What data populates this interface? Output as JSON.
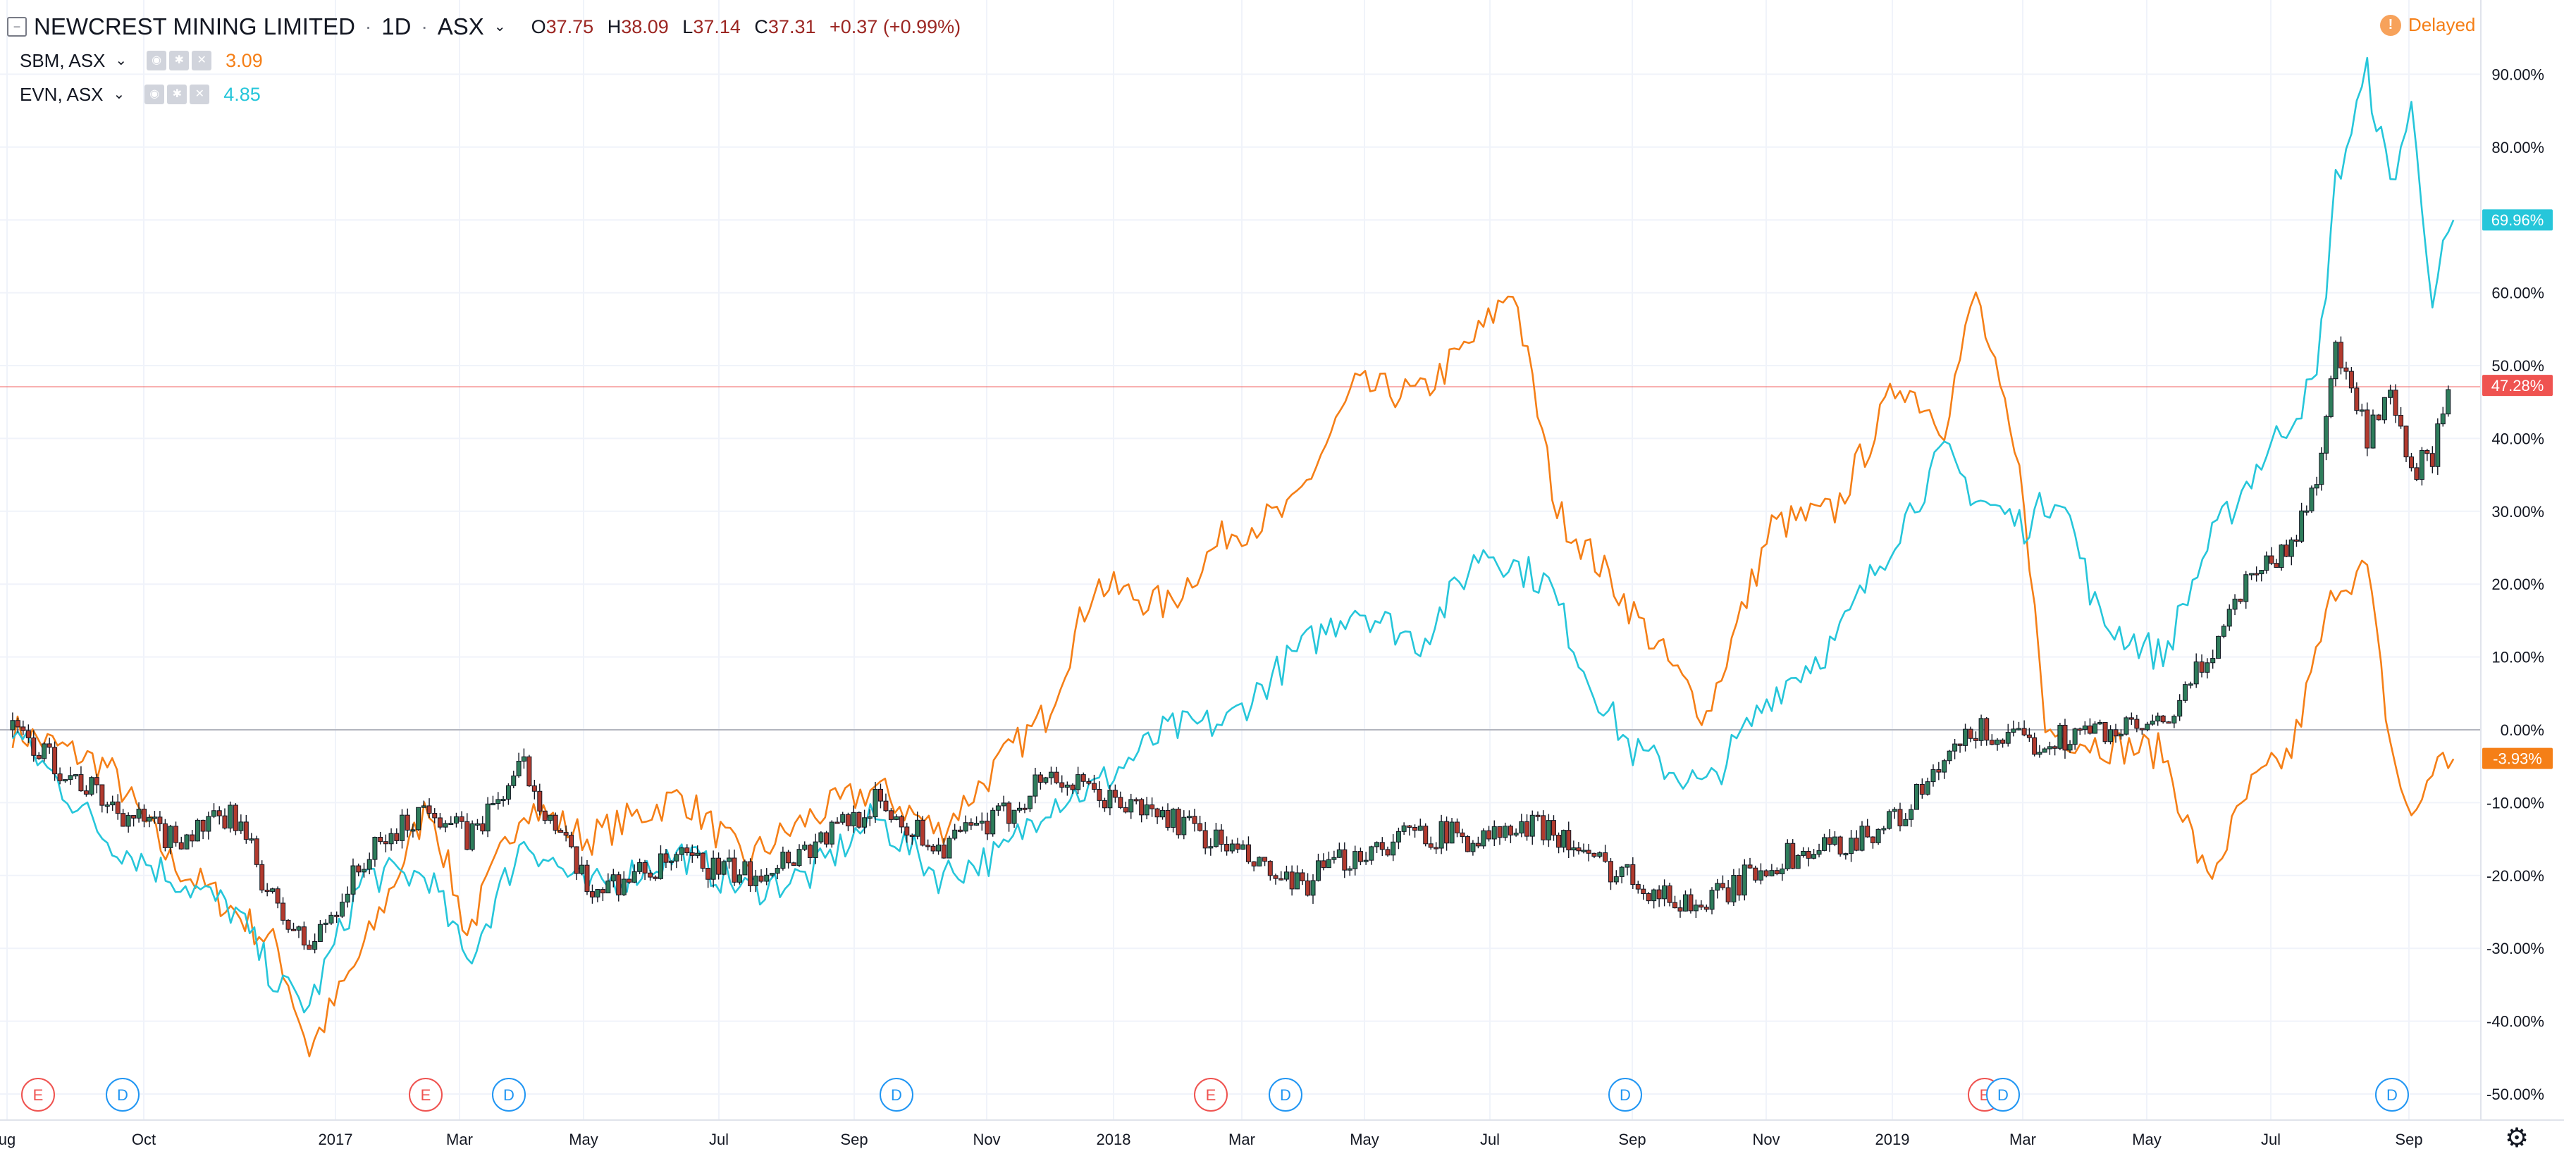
{
  "header": {
    "title": "NEWCREST MINING LIMITED",
    "interval": "1D",
    "exchange": "ASX",
    "ohlc": {
      "o_label": "O",
      "o": "37.75",
      "h_label": "H",
      "h": "38.09",
      "l_label": "L",
      "l": "37.14",
      "c_label": "C",
      "c": "37.31",
      "change": "+0.37 (+0.99%)"
    },
    "status": "Delayed",
    "status_icon": "!"
  },
  "compare": [
    {
      "symbol": "SBM, ASX",
      "value": "3.09",
      "color": "#f57f17"
    },
    {
      "symbol": "EVN, ASX",
      "value": "4.85",
      "color": "#26c6da"
    }
  ],
  "chart_data": {
    "type": "line",
    "y_scale": "percent",
    "ylim": [
      -53,
      93
    ],
    "y_ticks": [
      "90.00%",
      "80.00%",
      "70.00%",
      "60.00%",
      "50.00%",
      "40.00%",
      "30.00%",
      "20.00%",
      "10.00%",
      "0.00%",
      "-10.00%",
      "-20.00%",
      "-30.00%",
      "-40.00%",
      "-50.00%"
    ],
    "x_ticks": [
      "ug",
      "Oct",
      "2017",
      "Mar",
      "May",
      "Jul",
      "Sep",
      "Nov",
      "2018",
      "Mar",
      "May",
      "Jul",
      "Sep",
      "Nov",
      "2019",
      "Mar",
      "May",
      "Jul",
      "Sep"
    ],
    "x_range": [
      "2016-08",
      "2019-09"
    ],
    "series": [
      {
        "name": "SBM, ASX",
        "color": "#f57f17",
        "style": "line",
        "x": [
          "2016-08-01",
          "2016-09-15",
          "2016-10-15",
          "2016-11-15",
          "2016-12-05",
          "2016-12-20",
          "2017-01-15",
          "2017-02-15",
          "2017-03-05",
          "2017-04-01",
          "2017-05-01",
          "2017-06-15",
          "2017-07-15",
          "2017-08-15",
          "2017-09-15",
          "2017-10-15",
          "2017-11-15",
          "2017-12-05",
          "2017-12-28",
          "2018-02-01",
          "2018-03-01",
          "2018-04-01",
          "2018-05-01",
          "2018-06-01",
          "2018-07-01",
          "2018-07-15",
          "2018-08-05",
          "2018-09-01",
          "2018-09-20",
          "2018-10-15",
          "2018-11-15",
          "2018-12-15",
          "2019-01-15",
          "2019-02-05",
          "2019-02-20",
          "2019-03-15",
          "2019-03-25",
          "2019-04-20",
          "2019-05-20",
          "2019-06-10",
          "2019-07-01",
          "2019-07-20",
          "2019-08-10",
          "2019-08-25",
          "2019-09-05",
          "2019-09-15",
          "2019-09-25",
          "2019-10-05"
        ],
        "y": [
          0,
          -5,
          -18,
          -25,
          -30,
          -44,
          -30,
          -10,
          -28,
          -10,
          -15,
          -9,
          -18,
          -12,
          -8,
          -14,
          -4,
          2,
          20,
          17,
          27,
          30,
          47,
          46,
          55,
          61,
          30,
          20,
          12,
          2,
          28,
          30,
          48,
          42,
          60,
          32,
          0,
          -2,
          -3,
          -21,
          -8,
          -3,
          20,
          22,
          -2,
          -13,
          -5,
          -4
        ]
      },
      {
        "name": "EVN, ASX",
        "color": "#26c6da",
        "style": "line",
        "x": [
          "2016-08-01",
          "2016-09-15",
          "2016-10-15",
          "2016-11-15",
          "2016-12-05",
          "2016-12-20",
          "2017-01-15",
          "2017-02-15",
          "2017-03-05",
          "2017-04-01",
          "2017-05-01",
          "2017-06-15",
          "2017-07-15",
          "2017-08-15",
          "2017-09-15",
          "2017-10-15",
          "2017-11-15",
          "2017-12-05",
          "2017-12-28",
          "2018-02-01",
          "2018-03-01",
          "2018-04-01",
          "2018-05-01",
          "2018-06-01",
          "2018-07-01",
          "2018-08-01",
          "2018-08-20",
          "2018-09-10",
          "2018-09-25",
          "2018-10-15",
          "2018-11-15",
          "2018-12-15",
          "2019-01-15",
          "2019-02-05",
          "2019-02-20",
          "2019-03-15",
          "2019-04-01",
          "2019-04-20",
          "2019-05-20",
          "2019-06-10",
          "2019-07-01",
          "2019-07-20",
          "2019-08-01",
          "2019-08-10",
          "2019-08-25",
          "2019-09-05",
          "2019-09-15",
          "2019-09-25",
          "2019-10-05"
        ],
        "y": [
          0,
          -15,
          -20,
          -25,
          -35,
          -38,
          -20,
          -20,
          -32,
          -15,
          -22,
          -17,
          -22,
          -20,
          -12,
          -20,
          -17,
          -10,
          -8,
          0,
          1,
          10,
          17,
          12,
          25,
          20,
          7,
          -3,
          -5,
          -8,
          5,
          12,
          28,
          38,
          32,
          28,
          33,
          15,
          10,
          25,
          35,
          43,
          48,
          75,
          90,
          75,
          85,
          60,
          70
        ]
      },
      {
        "name": "NEWCREST MINING LIMITED",
        "color": "#131722",
        "style": "candles",
        "x": [
          "2016-08-01",
          "2016-09-15",
          "2016-10-15",
          "2016-11-15",
          "2016-12-05",
          "2016-12-20",
          "2017-01-15",
          "2017-02-15",
          "2017-03-05",
          "2017-04-01",
          "2017-05-01",
          "2017-06-15",
          "2017-07-15",
          "2017-08-15",
          "2017-09-15",
          "2017-10-15",
          "2017-11-15",
          "2017-12-05",
          "2017-12-28",
          "2018-02-01",
          "2018-03-01",
          "2018-04-01",
          "2018-05-01",
          "2018-06-01",
          "2018-07-01",
          "2018-08-01",
          "2018-08-20",
          "2018-09-10",
          "2018-09-25",
          "2018-10-15",
          "2018-11-15",
          "2018-12-15",
          "2019-01-15",
          "2019-02-05",
          "2019-02-20",
          "2019-03-15",
          "2019-04-01",
          "2019-04-20",
          "2019-05-20",
          "2019-06-10",
          "2019-07-01",
          "2019-07-20",
          "2019-08-01",
          "2019-08-10",
          "2019-08-25",
          "2019-09-05",
          "2019-09-15",
          "2019-09-25",
          "2019-10-05"
        ],
        "y": [
          0,
          -10,
          -15,
          -12,
          -25,
          -30,
          -18,
          -10,
          -15,
          -5,
          -22,
          -18,
          -20,
          -16,
          -10,
          -16,
          -12,
          -6,
          -9,
          -12,
          -16,
          -22,
          -17,
          -14,
          -15,
          -13,
          -18,
          -20,
          -23,
          -24,
          -18,
          -16,
          -12,
          -5,
          0,
          -2,
          -1,
          0,
          0,
          10,
          22,
          25,
          35,
          52,
          40,
          45,
          35,
          38,
          47
        ]
      }
    ],
    "price_labels": [
      {
        "value": "69.96%",
        "y": 70,
        "color": "#26c6da"
      },
      {
        "value": "47.28%",
        "y": 47.28,
        "color": "#ef5350"
      },
      {
        "value": "-3.93%",
        "y": -3.93,
        "color": "#f57f17"
      }
    ],
    "events": [
      {
        "label": "E",
        "x": "2016-08-15",
        "kind": "earnings"
      },
      {
        "label": "D",
        "x": "2016-09-10",
        "kind": "dividend"
      },
      {
        "label": "E",
        "x": "2017-02-15",
        "kind": "earnings"
      },
      {
        "label": "D",
        "x": "2017-03-15",
        "kind": "dividend"
      },
      {
        "label": "D",
        "x": "2017-09-10",
        "kind": "dividend"
      },
      {
        "label": "E",
        "x": "2018-02-15",
        "kind": "earnings"
      },
      {
        "label": "D",
        "x": "2018-03-15",
        "kind": "dividend"
      },
      {
        "label": "D",
        "x": "2018-09-01",
        "kind": "dividend"
      },
      {
        "label": "E",
        "x": "2019-02-18",
        "kind": "earnings"
      },
      {
        "label": "D",
        "x": "2019-02-22",
        "kind": "dividend"
      },
      {
        "label": "D",
        "x": "2019-09-01",
        "kind": "dividend"
      }
    ]
  }
}
